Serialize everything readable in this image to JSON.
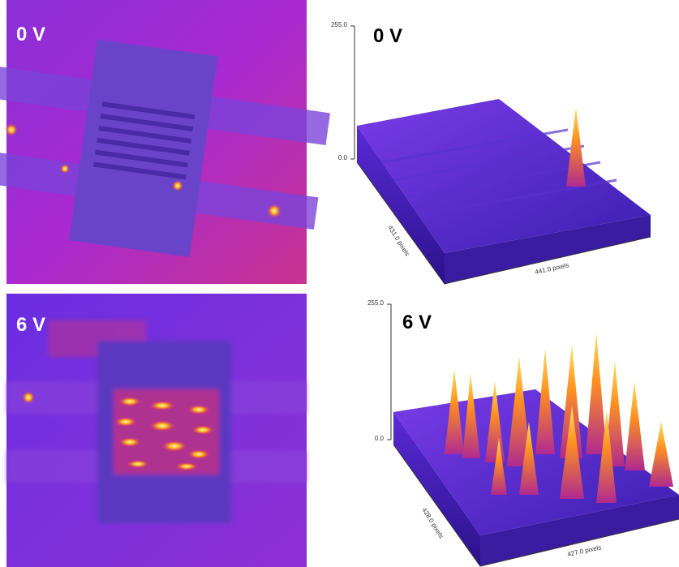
{
  "panels": [
    {
      "label": "0 V"
    },
    {
      "label": "0 V",
      "z_max": "255.0",
      "z_min": "0.0",
      "y_axis": "431.0 pixels",
      "x_axis": "441.0 pixels"
    },
    {
      "label": "6 V"
    },
    {
      "label": "6 V",
      "z_max": "255.0",
      "z_min": "0.0",
      "y_axis": "428.0 pixels",
      "x_axis": "427.0 pixels"
    }
  ]
}
